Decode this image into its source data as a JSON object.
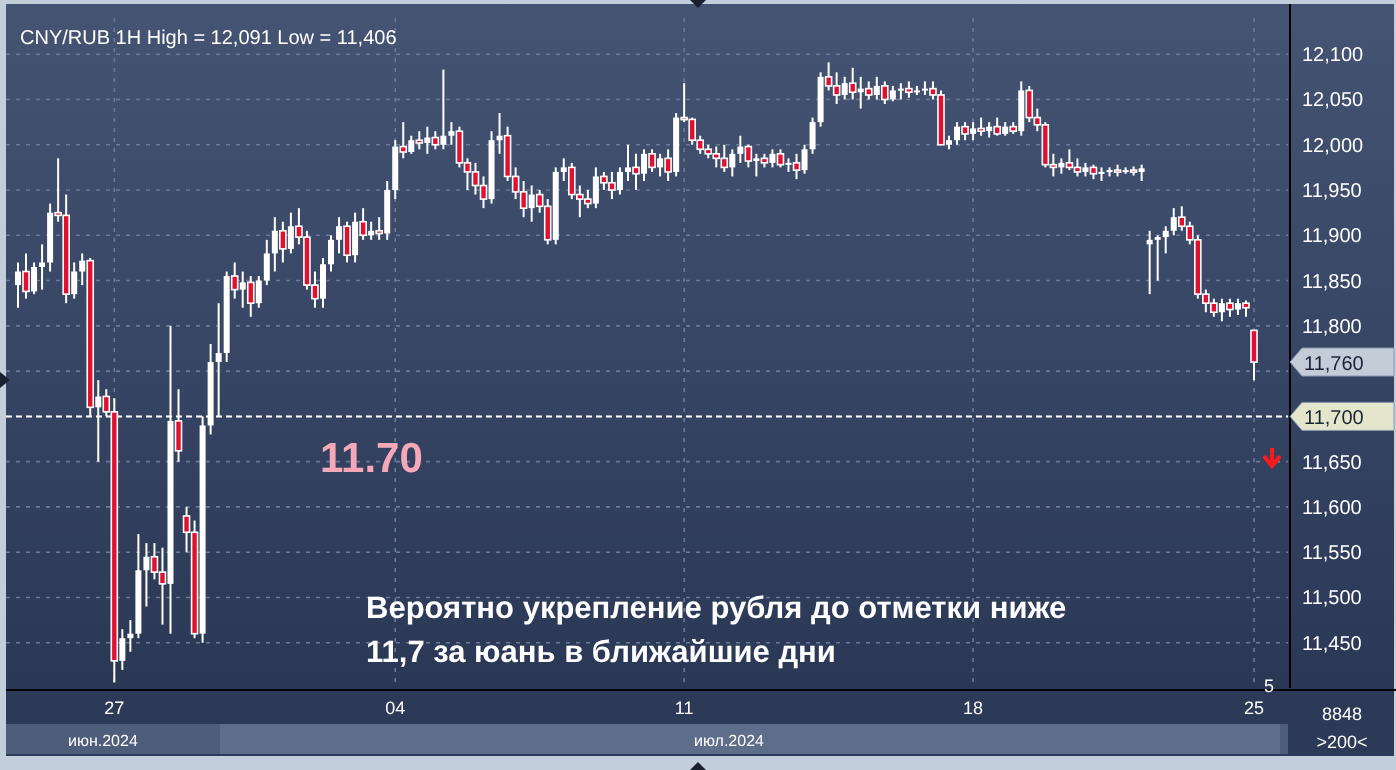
{
  "chart_data": {
    "type": "candlestick",
    "title": "CNY/RUB 1H High = 12,091 Low = 11,406",
    "categories": [
      null,
      null,
      null,
      null,
      null,
      null,
      null,
      null,
      null,
      null,
      null,
      null,
      "27",
      null,
      null,
      null,
      null,
      null,
      null,
      null,
      null,
      null,
      null,
      null,
      null,
      null,
      null,
      null,
      null,
      null,
      null,
      null,
      null,
      null,
      null,
      null,
      null,
      null,
      null,
      null,
      null,
      null,
      null,
      null,
      null,
      null,
      null,
      "04",
      null,
      null,
      null,
      null,
      null,
      null,
      null,
      null,
      null,
      null,
      null,
      null,
      null,
      null,
      null,
      null,
      null,
      null,
      null,
      null,
      null,
      null,
      null,
      null,
      null,
      null,
      null,
      null,
      null,
      null,
      null,
      null,
      null,
      null,
      null,
      "11",
      null,
      null,
      null,
      null,
      null,
      null,
      null,
      null,
      null,
      null,
      null,
      null,
      null,
      null,
      null,
      null,
      null,
      null,
      null,
      null,
      null,
      null,
      null,
      null,
      null,
      null,
      null,
      null,
      null,
      null,
      null,
      null,
      null,
      null,
      null,
      "18",
      null,
      null,
      null,
      null,
      null,
      null,
      null,
      null,
      null,
      null,
      null,
      null,
      null,
      null,
      null,
      null,
      null,
      null,
      null,
      null,
      null,
      null,
      null,
      null,
      null,
      null,
      null,
      null,
      null,
      null,
      null,
      null,
      null,
      null,
      "25"
    ],
    "ohlc": [
      [
        11845,
        11870,
        11820,
        11860
      ],
      [
        11860,
        11880,
        11830,
        11838
      ],
      [
        11838,
        11870,
        11835,
        11865
      ],
      [
        11865,
        11890,
        11840,
        11870
      ],
      [
        11870,
        11935,
        11860,
        11925
      ],
      [
        11925,
        11985,
        11915,
        11922
      ],
      [
        11922,
        11945,
        11825,
        11835
      ],
      [
        11835,
        11870,
        11830,
        11860
      ],
      [
        11860,
        11880,
        11845,
        11872
      ],
      [
        11872,
        11875,
        11700,
        11710
      ],
      [
        11710,
        11740,
        11650,
        11722
      ],
      [
        11722,
        11730,
        11700,
        11705
      ],
      [
        11705,
        11720,
        11406,
        11430
      ],
      [
        11430,
        11465,
        11420,
        11455
      ],
      [
        11455,
        11475,
        11440,
        11460
      ],
      [
        11460,
        11570,
        11455,
        11530
      ],
      [
        11530,
        11560,
        11490,
        11545
      ],
      [
        11545,
        11560,
        11520,
        11528
      ],
      [
        11528,
        11555,
        11470,
        11515
      ],
      [
        11515,
        11800,
        11460,
        11695
      ],
      [
        11695,
        11730,
        11650,
        11662
      ],
      [
        11590,
        11600,
        11550,
        11572
      ],
      [
        11572,
        11585,
        11455,
        11460
      ],
      [
        11460,
        11700,
        11450,
        11690
      ],
      [
        11690,
        11780,
        11680,
        11760
      ],
      [
        11760,
        11825,
        11700,
        11770
      ],
      [
        11770,
        11860,
        11760,
        11855
      ],
      [
        11855,
        11870,
        11830,
        11840
      ],
      [
        11840,
        11860,
        11820,
        11848
      ],
      [
        11848,
        11855,
        11810,
        11825
      ],
      [
        11825,
        11855,
        11820,
        11850
      ],
      [
        11850,
        11895,
        11845,
        11880
      ],
      [
        11880,
        11920,
        11860,
        11905
      ],
      [
        11905,
        11915,
        11870,
        11885
      ],
      [
        11885,
        11925,
        11880,
        11910
      ],
      [
        11910,
        11930,
        11890,
        11898
      ],
      [
        11898,
        11905,
        11840,
        11845
      ],
      [
        11845,
        11860,
        11820,
        11830
      ],
      [
        11830,
        11875,
        11820,
        11868
      ],
      [
        11868,
        11900,
        11860,
        11895
      ],
      [
        11895,
        11920,
        11880,
        11910
      ],
      [
        11910,
        11915,
        11870,
        11878
      ],
      [
        11878,
        11925,
        11870,
        11915
      ],
      [
        11915,
        11930,
        11895,
        11900
      ],
      [
        11900,
        11915,
        11895,
        11905
      ],
      [
        11905,
        11920,
        11895,
        11902
      ],
      [
        11902,
        11960,
        11895,
        11950
      ],
      [
        11950,
        12005,
        11940,
        11998
      ],
      [
        11998,
        12025,
        11985,
        11992
      ],
      [
        11992,
        12010,
        11990,
        12005
      ],
      [
        12005,
        12015,
        11995,
        12002
      ],
      [
        12002,
        12020,
        11990,
        12008
      ],
      [
        12008,
        12015,
        11995,
        12000
      ],
      [
        12000,
        12083,
        11995,
        12010
      ],
      [
        12010,
        12025,
        12000,
        12015
      ],
      [
        12015,
        12020,
        11975,
        11980
      ],
      [
        11980,
        11985,
        11950,
        11970
      ],
      [
        11970,
        11980,
        11945,
        11955
      ],
      [
        11955,
        11965,
        11930,
        11940
      ],
      [
        11940,
        12015,
        11935,
        12005
      ],
      [
        12005,
        12035,
        11990,
        12010
      ],
      [
        12010,
        12020,
        11960,
        11965
      ],
      [
        11965,
        11975,
        11940,
        11948
      ],
      [
        11948,
        11960,
        11920,
        11930
      ],
      [
        11930,
        11955,
        11915,
        11945
      ],
      [
        11945,
        11950,
        11925,
        11932
      ],
      [
        11932,
        11940,
        11890,
        11895
      ],
      [
        11895,
        11975,
        11890,
        11970
      ],
      [
        11970,
        11985,
        11960,
        11975
      ],
      [
        11975,
        11980,
        11940,
        11945
      ],
      [
        11945,
        11955,
        11920,
        11940
      ],
      [
        11940,
        11950,
        11930,
        11935
      ],
      [
        11935,
        11975,
        11930,
        11965
      ],
      [
        11965,
        11970,
        11950,
        11958
      ],
      [
        11958,
        11970,
        11940,
        11950
      ],
      [
        11950,
        11975,
        11945,
        11970
      ],
      [
        11970,
        12000,
        11960,
        11975
      ],
      [
        11975,
        11990,
        11950,
        11968
      ],
      [
        11968,
        11995,
        11960,
        11990
      ],
      [
        11990,
        11995,
        11970,
        11975
      ],
      [
        11975,
        11990,
        11965,
        11985
      ],
      [
        11985,
        11995,
        11960,
        11970
      ],
      [
        11970,
        12035,
        11965,
        12030
      ],
      [
        12030,
        12068,
        12025,
        12028
      ],
      [
        12028,
        12030,
        12000,
        12005
      ],
      [
        12005,
        12010,
        11990,
        11995
      ],
      [
        11995,
        12000,
        11985,
        11990
      ],
      [
        11990,
        11998,
        11975,
        11985
      ],
      [
        11985,
        12000,
        11970,
        11975
      ],
      [
        11975,
        11995,
        11965,
        11990
      ],
      [
        11990,
        12010,
        11980,
        11998
      ],
      [
        11998,
        12000,
        11975,
        11982
      ],
      [
        11982,
        11990,
        11965,
        11985
      ],
      [
        11985,
        11990,
        11975,
        11980
      ],
      [
        11980,
        11995,
        11975,
        11990
      ],
      [
        11990,
        11995,
        11975,
        11978
      ],
      [
        11978,
        11985,
        11970,
        11980
      ],
      [
        11980,
        11990,
        11962,
        11972
      ],
      [
        11972,
        12000,
        11968,
        11995
      ],
      [
        11995,
        12030,
        11990,
        12025
      ],
      [
        12025,
        12080,
        12020,
        12075
      ],
      [
        12075,
        12091,
        12060,
        12065
      ],
      [
        12065,
        12080,
        12045,
        12055
      ],
      [
        12055,
        12075,
        12050,
        12068
      ],
      [
        12068,
        12085,
        12050,
        12058
      ],
      [
        12058,
        12075,
        12040,
        12062
      ],
      [
        12062,
        12070,
        12050,
        12055
      ],
      [
        12055,
        12075,
        12050,
        12065
      ],
      [
        12065,
        12070,
        12045,
        12050
      ],
      [
        12050,
        12065,
        12048,
        12060
      ],
      [
        12060,
        12068,
        12050,
        12062
      ],
      [
        12062,
        12070,
        12052,
        12058
      ],
      [
        12058,
        12065,
        12055,
        12060
      ],
      [
        12060,
        12070,
        12055,
        12062
      ],
      [
        12062,
        12070,
        12050,
        12055
      ],
      [
        12055,
        12060,
        12000,
        12000
      ],
      [
        12000,
        12010,
        11995,
        12005
      ],
      [
        12005,
        12025,
        12000,
        12020
      ],
      [
        12020,
        12025,
        12005,
        12012
      ],
      [
        12012,
        12025,
        12005,
        12018
      ],
      [
        12018,
        12030,
        12010,
        12015
      ],
      [
        12015,
        12025,
        12008,
        12020
      ],
      [
        12020,
        12030,
        12010,
        12012
      ],
      [
        12012,
        12025,
        12010,
        12020
      ],
      [
        12020,
        12025,
        12012,
        12015
      ],
      [
        12015,
        12070,
        12010,
        12060
      ],
      [
        12060,
        12065,
        12025,
        12030
      ],
      [
        12030,
        12040,
        12015,
        12022
      ],
      [
        12022,
        12025,
        11975,
        11978
      ],
      [
        11978,
        11990,
        11965,
        11975
      ],
      [
        11975,
        11985,
        11968,
        11980
      ],
      [
        11980,
        11995,
        11972,
        11975
      ],
      [
        11975,
        11985,
        11965,
        11970
      ],
      [
        11970,
        11980,
        11965,
        11975
      ],
      [
        11975,
        11978,
        11962,
        11968
      ],
      [
        11968,
        11975,
        11960,
        11970
      ],
      [
        11970,
        11975,
        11965,
        11972
      ],
      [
        11972,
        11978,
        11965,
        11970
      ],
      [
        11970,
        11975,
        11968,
        11972
      ],
      [
        11972,
        11976,
        11966,
        11970
      ],
      [
        11970,
        11978,
        11960,
        11974
      ],
      [
        11890,
        11905,
        11835,
        11895
      ],
      [
        11895,
        11900,
        11850,
        11898
      ],
      [
        11898,
        11910,
        11880,
        11905
      ],
      [
        11905,
        11930,
        11900,
        11920
      ],
      [
        11920,
        11932,
        11905,
        11910
      ],
      [
        11910,
        11915,
        11890,
        11895
      ],
      [
        11895,
        11900,
        11830,
        11835
      ],
      [
        11835,
        11840,
        11815,
        11825
      ],
      [
        11825,
        11830,
        11810,
        11815
      ],
      [
        11815,
        11830,
        11805,
        11825
      ],
      [
        11825,
        11830,
        11810,
        11818
      ],
      [
        11818,
        11830,
        11812,
        11825
      ],
      [
        11825,
        11828,
        11810,
        11820
      ],
      [
        11795,
        11795,
        11740,
        11760
      ]
    ],
    "color": "#ffffff",
    "ylim": [
      11400,
      12140
    ],
    "yticks": [
      {
        "value": 11450,
        "label": "11,450"
      },
      {
        "value": 11500,
        "label": "11,500"
      },
      {
        "value": 11550,
        "label": "11,550"
      },
      {
        "value": 11600,
        "label": "11,600"
      },
      {
        "value": 11650,
        "label": "11,650"
      },
      {
        "value": 11700,
        "label": "11,700"
      },
      {
        "value": 11750,
        "label": null
      },
      {
        "value": 11800,
        "label": "11,800"
      },
      {
        "value": 11850,
        "label": "11,850"
      },
      {
        "value": 11900,
        "label": "11,900"
      },
      {
        "value": 11950,
        "label": "11,950"
      },
      {
        "value": 12000,
        "label": "12,000"
      },
      {
        "value": 12050,
        "label": "12,050"
      },
      {
        "value": 12100,
        "label": "12,100"
      }
    ],
    "grid": true,
    "ref_lines": [
      {
        "axis": "y",
        "value": 11700,
        "label": "11,700",
        "color": "#ffffff",
        "line_style": "dashed"
      }
    ],
    "annotations": [
      "11.70",
      "Вероятно укрепление рубля до отметки ниже\n11,7 за юань в ближайшие дни",
      "11,760",
      "июн.2024",
      "июл.2024",
      "5",
      "8848",
      ">200<"
    ]
  }
}
